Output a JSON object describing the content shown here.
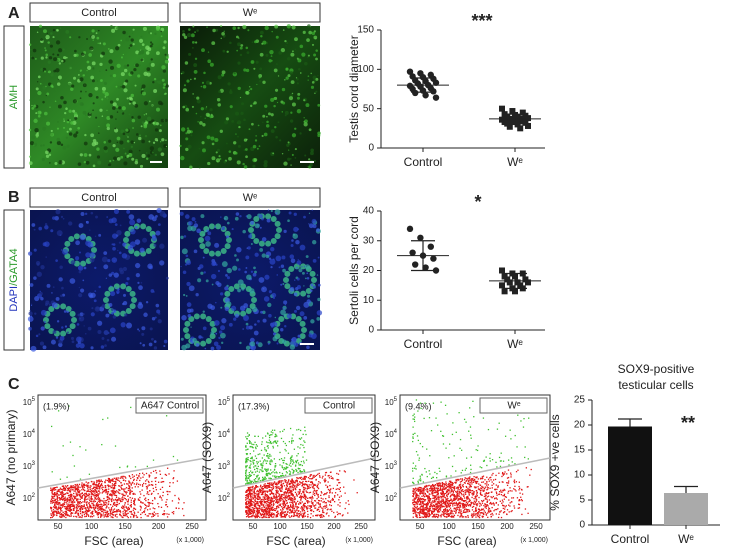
{
  "panel_labels": [
    "A",
    "B",
    "C"
  ],
  "row_a": {
    "stain": "AMH",
    "columns": [
      "Control",
      "Wᵉ"
    ]
  },
  "row_b": {
    "stain_parts": [
      "DAPI",
      "/GATA4"
    ],
    "columns": [
      "Control",
      "Wᵉ"
    ]
  },
  "flow": {
    "x_label": "FSC (area)",
    "x_unit": "(x 1,000)",
    "x_ticks": [
      "50",
      "100",
      "150",
      "200",
      "250"
    ],
    "y_ticks": [
      {
        "base": "10",
        "exp": "5"
      },
      {
        "base": "10",
        "exp": "4"
      },
      {
        "base": "10",
        "exp": "3"
      },
      {
        "base": "10",
        "exp": "2"
      }
    ],
    "plots": [
      {
        "title": "A647 Control",
        "gate": "(1.9%)",
        "y_label": "A647 (no primary)"
      },
      {
        "title": "Control",
        "gate": "(17.3%)",
        "y_label": "A647 (SOX9)"
      },
      {
        "title": "Wᵉ",
        "gate": "(9.4%)",
        "y_label": "A647 (SOX9)"
      }
    ]
  },
  "chart_data": [
    {
      "type": "dotplot",
      "y_label": "Testis cord diameter",
      "annotation": "***",
      "categories": [
        "Control",
        "Wᵉ"
      ],
      "values": [
        [
          97,
          95,
          93,
          91,
          90,
          88,
          86,
          85,
          83,
          82,
          80,
          79,
          78,
          76,
          75,
          73,
          72,
          70,
          67,
          64
        ],
        [
          50,
          47,
          45,
          43,
          42,
          41,
          40,
          39,
          38,
          37,
          37,
          36,
          35,
          34,
          33,
          33,
          32,
          31,
          30,
          28,
          27,
          25
        ]
      ],
      "means": [
        80,
        37
      ],
      "sd": [
        9,
        6
      ],
      "color": "#222222",
      "ylim": [
        0,
        150
      ],
      "yticks": [
        0,
        50,
        100,
        150
      ]
    },
    {
      "type": "dotplot",
      "y_label": "Sertoli cells per cord",
      "annotation": "*",
      "categories": [
        "Control",
        "Wᵉ"
      ],
      "values": [
        [
          34,
          31,
          28,
          26,
          25,
          24,
          22,
          21,
          20
        ],
        [
          20,
          19,
          19,
          18,
          18,
          17,
          17,
          16,
          16,
          16,
          15,
          15,
          14,
          14,
          13,
          13
        ]
      ],
      "means": [
        25,
        16.5
      ],
      "sd": [
        5,
        2.5
      ],
      "color": "#222222",
      "ylim": [
        0,
        40
      ],
      "yticks": [
        0,
        10,
        20,
        30,
        40
      ]
    },
    {
      "type": "bar",
      "title_lines": [
        "SOX9-positive",
        "testicular cells"
      ],
      "y_label": "% SOX9 +ve cells",
      "annotation": "**",
      "categories": [
        "Control",
        "Wᵉ"
      ],
      "values": [
        19.7,
        6.4
      ],
      "errors": [
        1.5,
        1.3
      ],
      "colors": [
        "#111111",
        "#aaaaaa"
      ],
      "ylim": [
        0,
        25
      ],
      "yticks": [
        0,
        5,
        10,
        15,
        20,
        25
      ]
    }
  ]
}
